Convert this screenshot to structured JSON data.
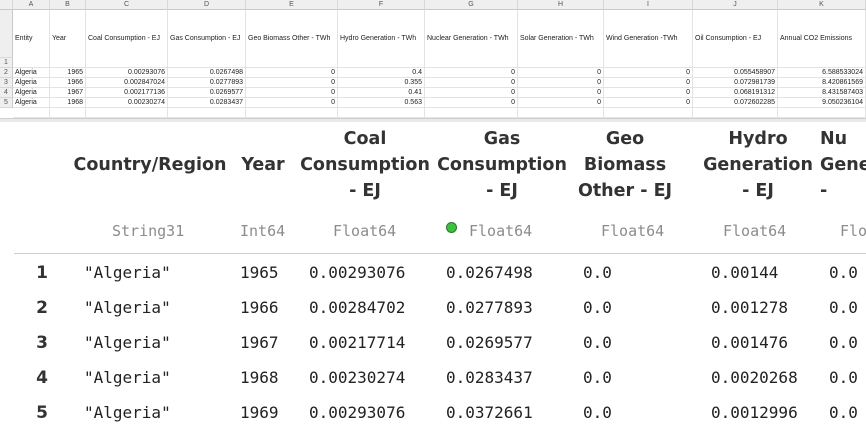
{
  "sheet": {
    "column_letters": [
      "A",
      "B",
      "C",
      "D",
      "E",
      "F",
      "G",
      "H",
      "I",
      "J",
      "K"
    ],
    "row_numbers": [
      "1",
      "2",
      "3",
      "4",
      "5"
    ],
    "headers": [
      "Entity",
      "Year",
      "Coal Consumption - EJ",
      "Gas Consumption - EJ",
      "Geo Biomass Other - TWh",
      "Hydro Generation - TWh",
      "Nuclear Generation - TWh",
      "Solar Generation - TWh",
      "Wind Generation -TWh",
      "Oil Consumption - EJ",
      "Annual CO2 Emissions"
    ],
    "rows": [
      [
        "Algeria",
        "1965",
        "0.00293076",
        "0.0267498",
        "0",
        "0.4",
        "0",
        "0",
        "0",
        "0.055458907",
        "6.588533024"
      ],
      [
        "Algeria",
        "1966",
        "0.002847024",
        "0.0277893",
        "0",
        "0.355",
        "0",
        "0",
        "0",
        "0.072981739",
        "8.420861569"
      ],
      [
        "Algeria",
        "1967",
        "0.002177136",
        "0.0269577",
        "0",
        "0.41",
        "0",
        "0",
        "0",
        "0.068191312",
        "8.431587403"
      ],
      [
        "Algeria",
        "1968",
        "0.00230274",
        "0.0283437",
        "0",
        "0.563",
        "0",
        "0",
        "0",
        "0.072602285",
        "9.050236104"
      ]
    ]
  },
  "dataframe": {
    "headers": [
      "Country/Region",
      "Year",
      "Coal\nConsumption\n- EJ",
      "Gas\nConsumption\n- EJ",
      "Geo\nBiomass\nOther - EJ",
      "Hydro\nGeneration\n- EJ",
      "Nu\nGene\n-"
    ],
    "types": [
      "String31",
      "Int64",
      "Float64",
      "Float64",
      "Float64",
      "Float64",
      "Flo"
    ],
    "rows": [
      {
        "num": "1",
        "cells": [
          "\"Algeria\"",
          "1965",
          "0.00293076",
          "0.0267498",
          "0.0",
          "0.00144",
          "0.0"
        ]
      },
      {
        "num": "2",
        "cells": [
          "\"Algeria\"",
          "1966",
          "0.00284702",
          "0.0277893",
          "0.0",
          "0.001278",
          "0.0"
        ]
      },
      {
        "num": "3",
        "cells": [
          "\"Algeria\"",
          "1967",
          "0.00217714",
          "0.0269577",
          "0.0",
          "0.001476",
          "0.0"
        ]
      },
      {
        "num": "4",
        "cells": [
          "\"Algeria\"",
          "1968",
          "0.00230274",
          "0.0283437",
          "0.0",
          "0.0020268",
          "0.0"
        ]
      },
      {
        "num": "5",
        "cells": [
          "\"Algeria\"",
          "1969",
          "0.00293076",
          "0.0372661",
          "0.0",
          "0.0012996",
          "0.0"
        ]
      }
    ],
    "status_color": "#3fbf3f"
  }
}
